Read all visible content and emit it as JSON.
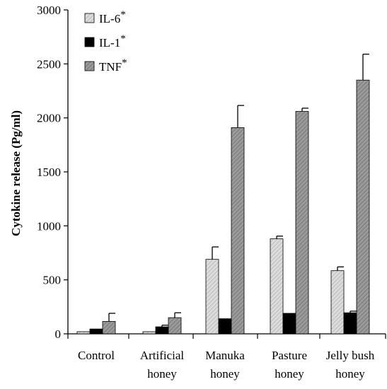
{
  "chart_data": {
    "type": "bar",
    "title": "",
    "xlabel": "",
    "ylabel": "Cytokine release (Pg/ml)",
    "ylim": [
      0,
      3000
    ],
    "yticks": [
      0,
      500,
      1000,
      1500,
      2000,
      2500,
      3000
    ],
    "grid": false,
    "legend_position": "top-left",
    "categories": [
      [
        "Control"
      ],
      [
        "Artificial",
        "honey"
      ],
      [
        "Manuka",
        "honey"
      ],
      [
        "Pasture",
        "honey"
      ],
      [
        "Jelly bush",
        "honey"
      ]
    ],
    "series": [
      {
        "name": "IL-6",
        "marker": "*",
        "fill": "#d4d4d4",
        "pattern": "light-hatch",
        "values": [
          20,
          20,
          690,
          880,
          585
        ],
        "errors": [
          0,
          0,
          115,
          25,
          35
        ]
      },
      {
        "name": "IL-1",
        "marker": "*",
        "fill": "#000000",
        "pattern": "solid",
        "values": [
          45,
          65,
          140,
          190,
          195
        ],
        "errors": [
          0,
          15,
          0,
          0,
          15
        ]
      },
      {
        "name": "TNF",
        "marker": "*",
        "fill": "#8f8f8f",
        "pattern": "dark-hatch",
        "values": [
          115,
          150,
          1910,
          2060,
          2350
        ],
        "errors": [
          75,
          45,
          205,
          30,
          240
        ]
      }
    ]
  }
}
